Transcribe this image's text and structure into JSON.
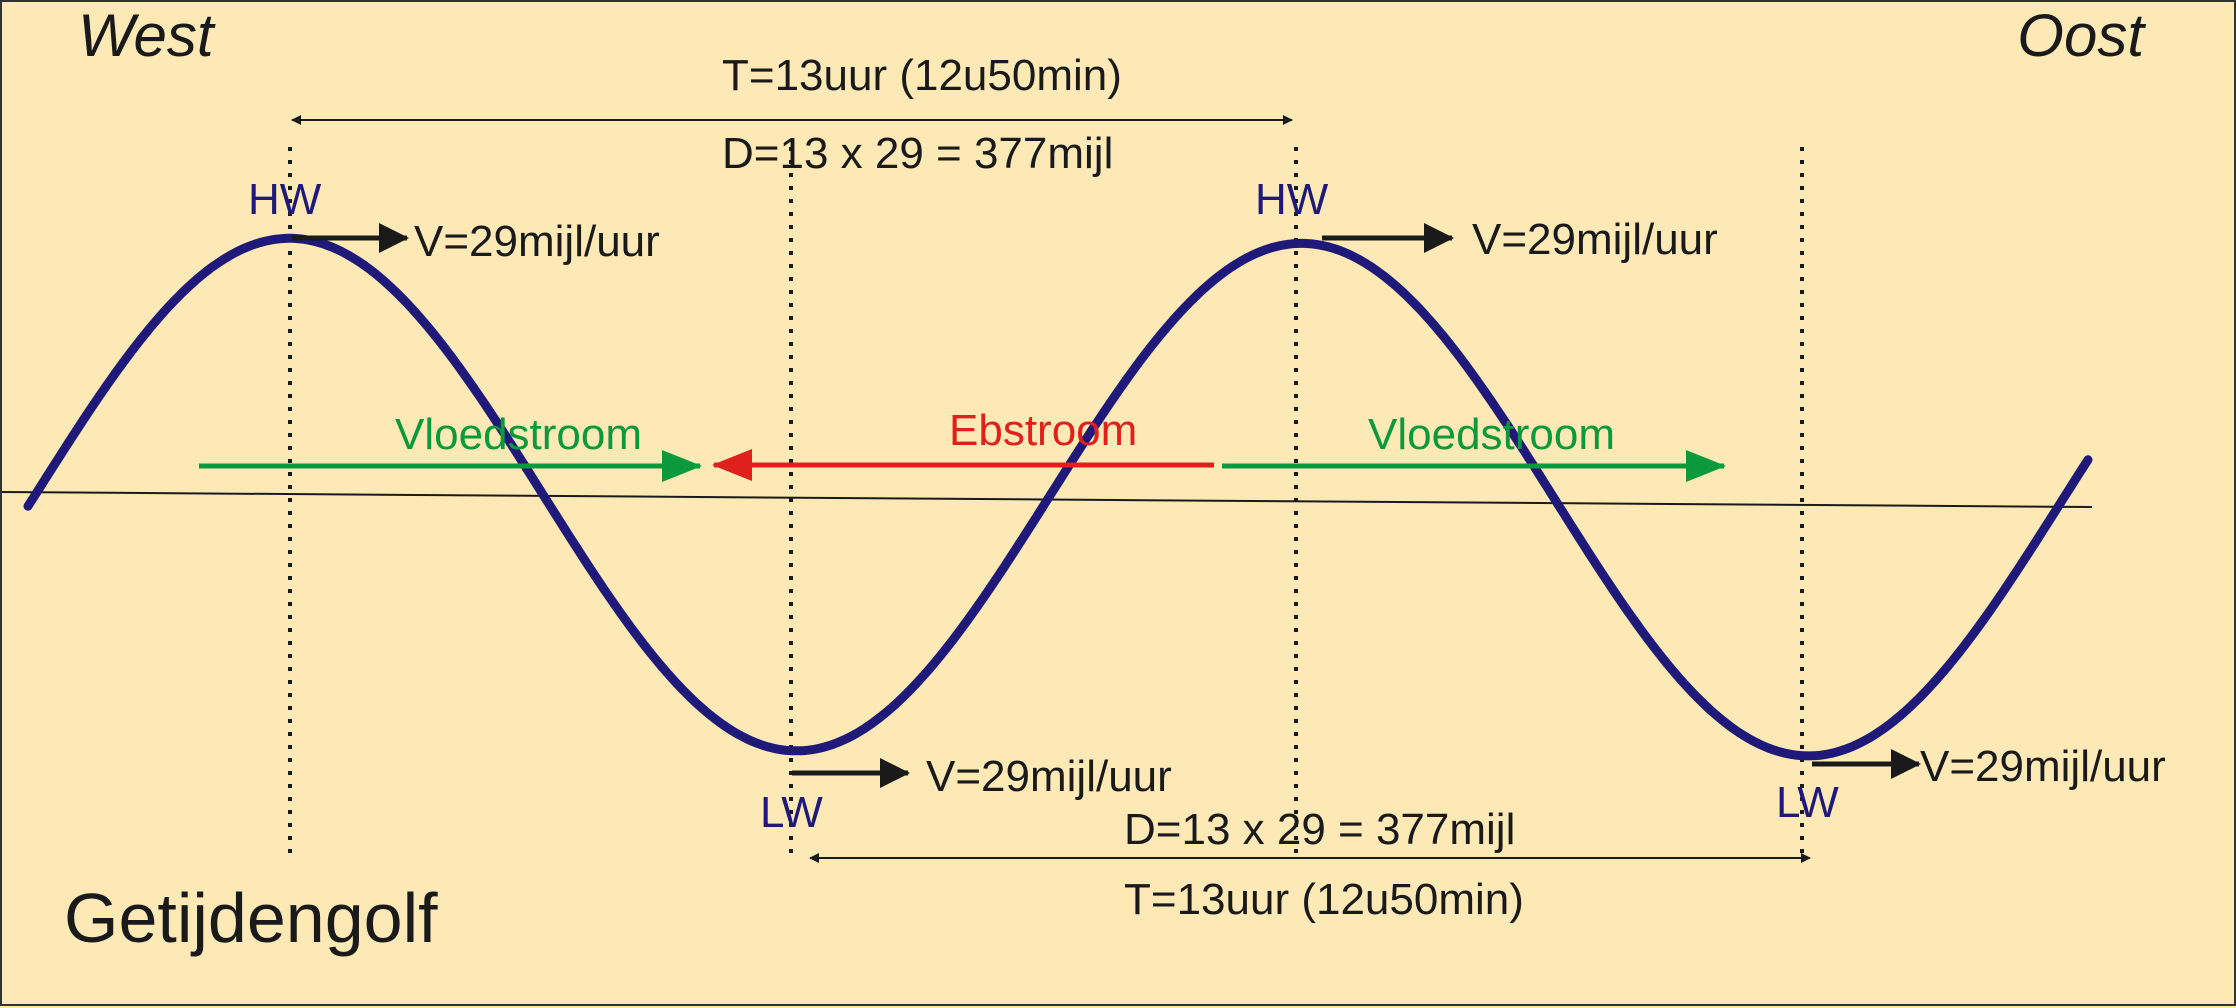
{
  "directions": {
    "west": "West",
    "east": "Oost"
  },
  "title": "Getijdengolf",
  "top_span": {
    "period": "T=13uur (12u50min)",
    "distance": "D=13 x 29 = 377mijl"
  },
  "bottom_span": {
    "distance": "D=13 x 29 = 377mijl",
    "period": "T=13uur (12u50min)"
  },
  "markers": {
    "high_water": "HW",
    "low_water": "LW"
  },
  "speed_label": "V=29mijl/uur",
  "currents": {
    "flood": "Vloedstroom",
    "ebb": "Ebstroom"
  },
  "colors": {
    "background": "#fde9b6",
    "wave": "#1f1a7a",
    "flood": "#0a9a3c",
    "ebb": "#e0201c",
    "marker_text": "#1f1a7a",
    "text": "#1a1a1a"
  }
}
